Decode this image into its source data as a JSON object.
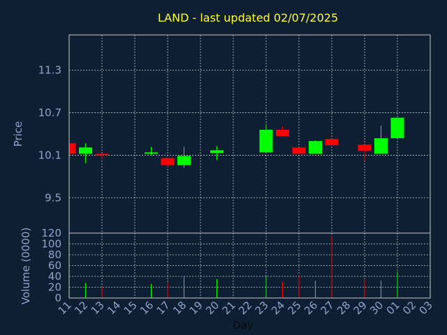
{
  "chart_data": {
    "type": "candlestick",
    "title": "LAND - last updated 02/07/2025",
    "xlabel": "Day",
    "price_panel": {
      "ylabel": "Price",
      "ylim": [
        9.0,
        11.8
      ],
      "yticks": [
        "9.5",
        "10.1",
        "10.7",
        "11.3"
      ],
      "ytick_values": [
        9.5,
        10.1,
        10.7,
        11.3
      ]
    },
    "volume_panel": {
      "ylabel": "Volume (0000)",
      "ylim": [
        0,
        120
      ],
      "yticks": [
        "0",
        "20",
        "40",
        "60",
        "80",
        "100",
        "120"
      ],
      "ytick_values": [
        0,
        20,
        40,
        60,
        80,
        100,
        120
      ]
    },
    "x_tick_labels": [
      "11",
      "12",
      "13",
      "14",
      "15",
      "16",
      "17",
      "18",
      "19",
      "20",
      "21",
      "22",
      "23",
      "24",
      "25",
      "26",
      "27",
      "28",
      "29",
      "30",
      "01",
      "02",
      "03"
    ],
    "candles": [
      {
        "slot": 0,
        "open": 10.27,
        "close": 10.12,
        "high": 10.27,
        "low": 10.12,
        "volume": 0
      },
      {
        "slot": 1,
        "open": 10.12,
        "close": 10.21,
        "high": 10.27,
        "low": 9.99,
        "volume": 28
      },
      {
        "slot": 2,
        "open": 10.12,
        "close": 10.1,
        "high": 10.12,
        "low": 10.05,
        "volume": 21
      },
      {
        "slot": 5,
        "open": 10.12,
        "close": 10.14,
        "high": 10.22,
        "low": 10.1,
        "volume": 26
      },
      {
        "slot": 6,
        "open": 10.06,
        "close": 9.96,
        "high": 10.06,
        "low": 9.93,
        "volume": 29
      },
      {
        "slot": 7,
        "open": 9.96,
        "close": 10.09,
        "high": 10.22,
        "low": 9.92,
        "volume": 40
      },
      {
        "slot": 9,
        "open": 10.13,
        "close": 10.17,
        "high": 10.23,
        "low": 10.03,
        "volume": 35
      },
      {
        "slot": 12,
        "open": 10.14,
        "close": 10.46,
        "high": 10.54,
        "low": 10.14,
        "volume": 40
      },
      {
        "slot": 13,
        "open": 10.46,
        "close": 10.37,
        "high": 10.51,
        "low": 10.37,
        "volume": 30
      },
      {
        "slot": 14,
        "open": 10.21,
        "close": 10.12,
        "high": 10.21,
        "low": 10.12,
        "volume": 42
      },
      {
        "slot": 15,
        "open": 10.12,
        "close": 10.3,
        "high": 10.31,
        "low": 10.12,
        "volume": 32
      },
      {
        "slot": 16,
        "open": 10.33,
        "close": 10.24,
        "high": 10.33,
        "low": 10.24,
        "volume": 115
      },
      {
        "slot": 18,
        "open": 10.25,
        "close": 10.16,
        "high": 10.25,
        "low": 10.02,
        "volume": 33
      },
      {
        "slot": 19,
        "open": 10.12,
        "close": 10.34,
        "high": 10.52,
        "low": 10.12,
        "volume": 32
      },
      {
        "slot": 20,
        "open": 10.34,
        "close": 10.63,
        "high": 10.63,
        "low": 10.32,
        "volume": 49
      }
    ],
    "colors": {
      "background": "#0f1f33",
      "up": "#00ff00",
      "down": "#ff0000",
      "grid": "#d9d9d9",
      "axis": "#c8c8c8",
      "text": "#8fa5cc",
      "title": "#ffff33",
      "xlabel": "#0a0a0a"
    },
    "grid": true
  }
}
